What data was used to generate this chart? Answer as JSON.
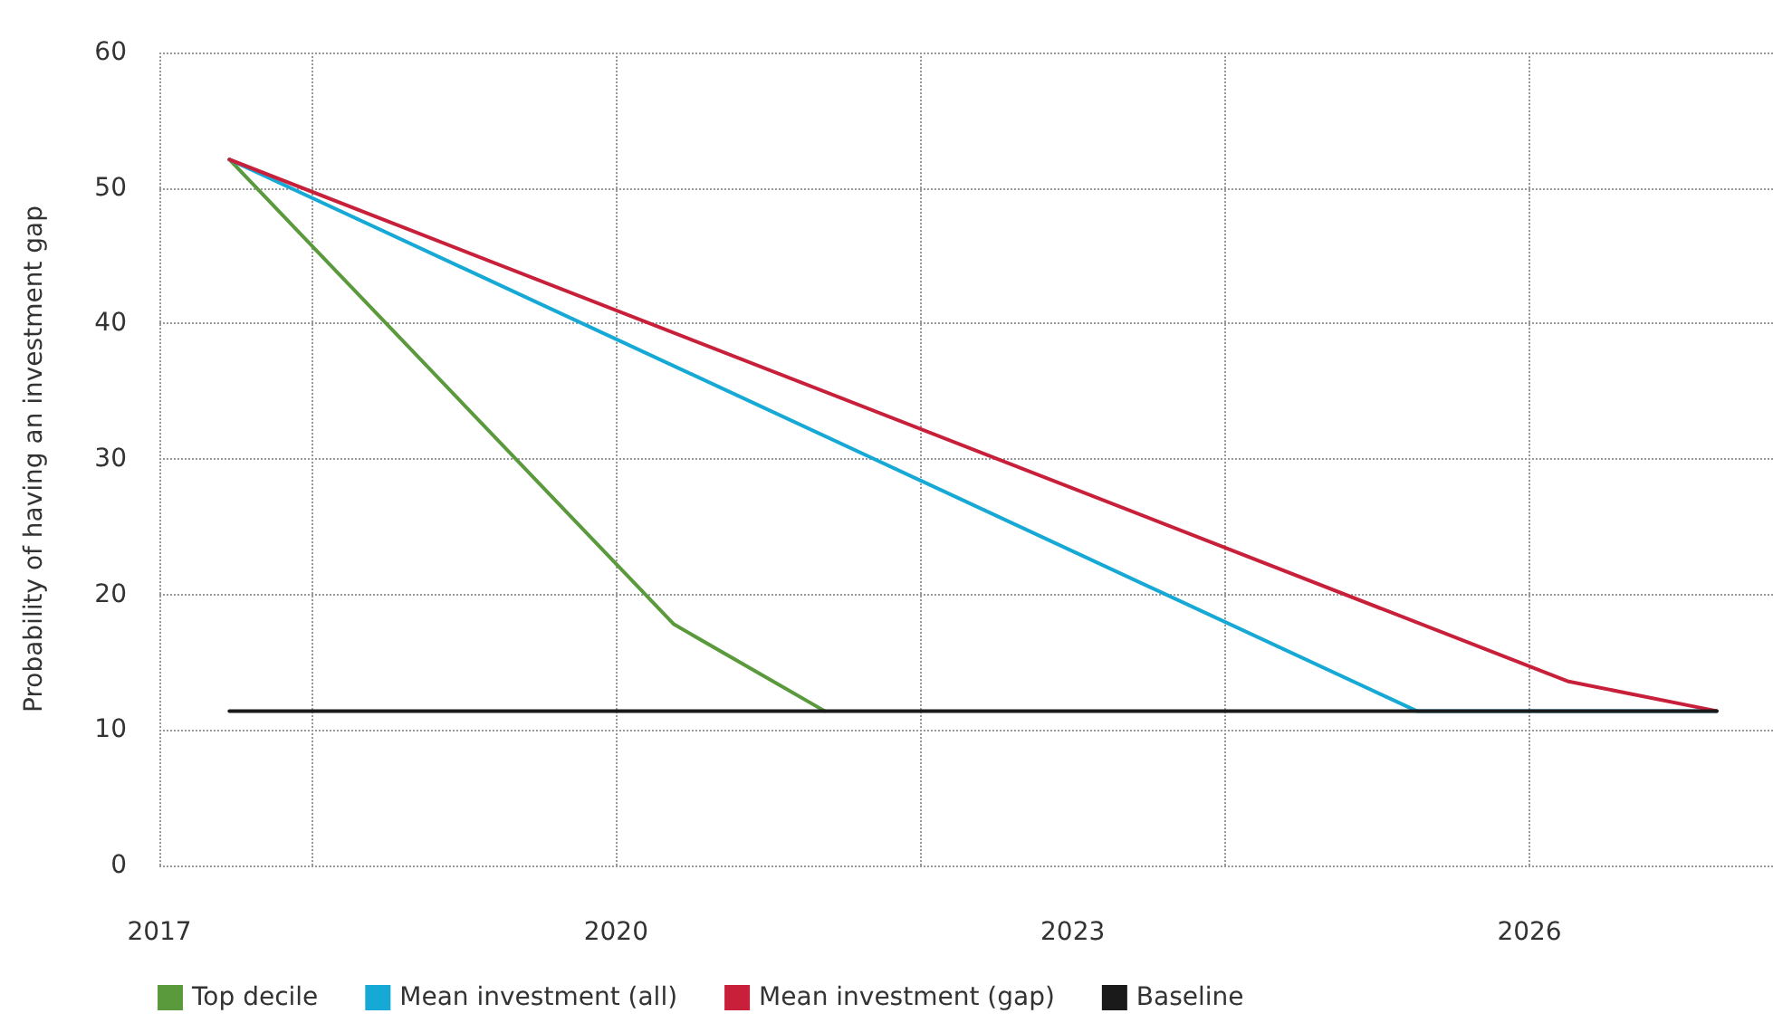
{
  "chart_data": {
    "type": "line",
    "ylabel": "Probability of having an investment gap",
    "xlim": [
      2017,
      2027.6
    ],
    "xticks": [
      2017,
      2020,
      2023,
      2026
    ],
    "ylim": [
      0,
      60
    ],
    "yticks": [
      0,
      10,
      20,
      30,
      40,
      50,
      60
    ],
    "grid": true,
    "legend": "bottom left",
    "marker": "none",
    "line_style": "solid",
    "series": [
      {
        "name": "Top decile",
        "color": "#5b9a3c",
        "x": [
          2017.46,
          2020.38,
          2021.37
        ],
        "values": [
          52.1,
          17.8,
          11.4
        ]
      },
      {
        "name": "Mean investment (all)",
        "color": "#17a9d6",
        "x": [
          2017.46,
          2025.26,
          2027.23
        ],
        "values": [
          52.1,
          11.4,
          11.4
        ]
      },
      {
        "name": "Mean investment (gap)",
        "color": "#c8203a",
        "x": [
          2017.46,
          2026.25,
          2027.23
        ],
        "values": [
          52.1,
          13.6,
          11.4
        ]
      },
      {
        "name": "Baseline",
        "color": "#1a1a1a",
        "x": [
          2017.46,
          2027.23
        ],
        "values": [
          11.4,
          11.4
        ]
      }
    ]
  }
}
